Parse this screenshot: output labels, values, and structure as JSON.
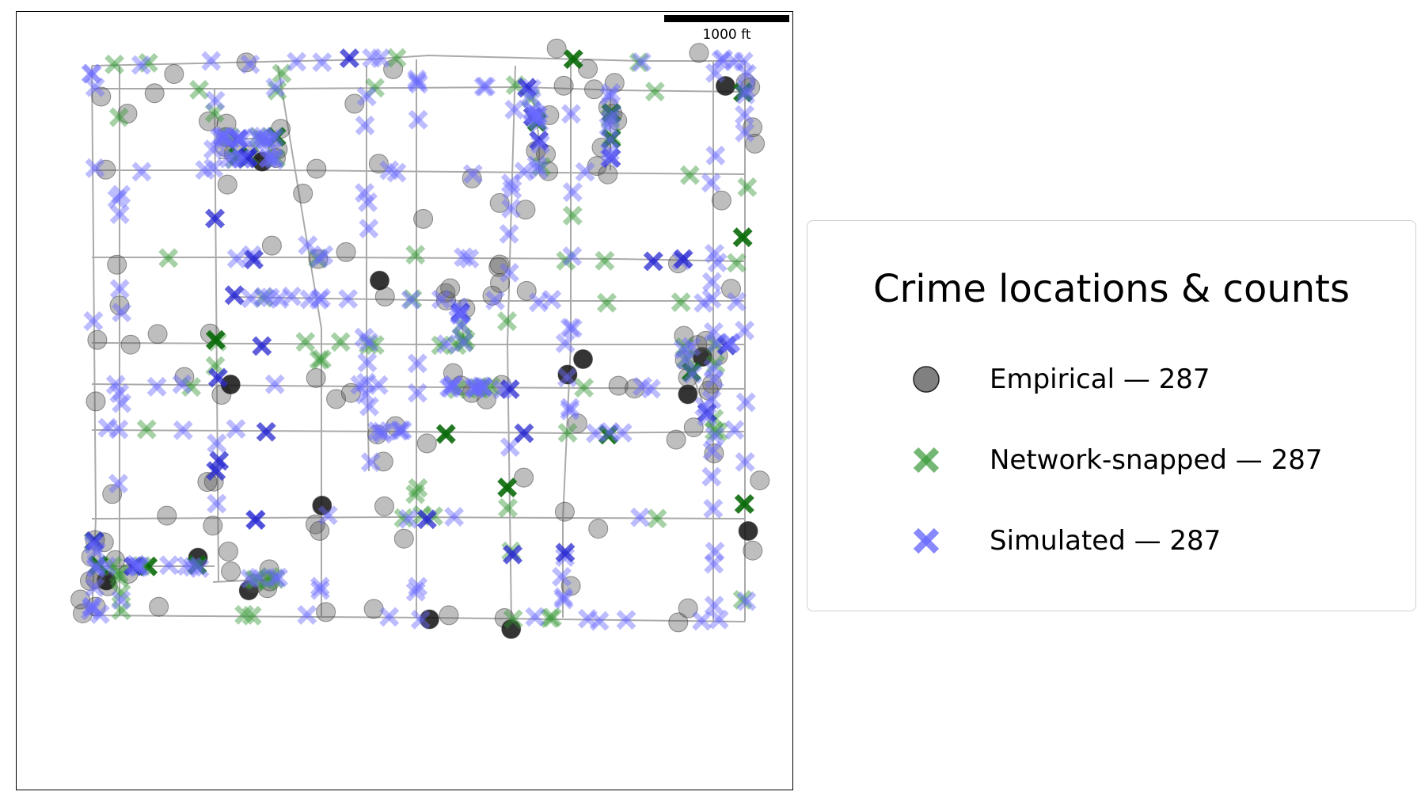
{
  "map": {
    "scalebar_label": "1000 ft"
  },
  "legend": {
    "title": "Crime locations & counts",
    "items": [
      {
        "label": "Empirical — 287",
        "marker": "circle",
        "color": "#555555"
      },
      {
        "label": "Network-snapped — 287",
        "marker": "x",
        "color": "#4caf50"
      },
      {
        "label": "Simulated — 287",
        "marker": "x",
        "color": "#5c5cff"
      }
    ]
  },
  "colors": {
    "street": "#aaaaaa",
    "empirical": "#555555",
    "empirical_dark": "#111111",
    "snapped": "#3a9a3a",
    "snapped_dark": "#0a6a0a",
    "simulated": "#6a6aff",
    "simulated_dark": "#2a2ad0"
  }
}
